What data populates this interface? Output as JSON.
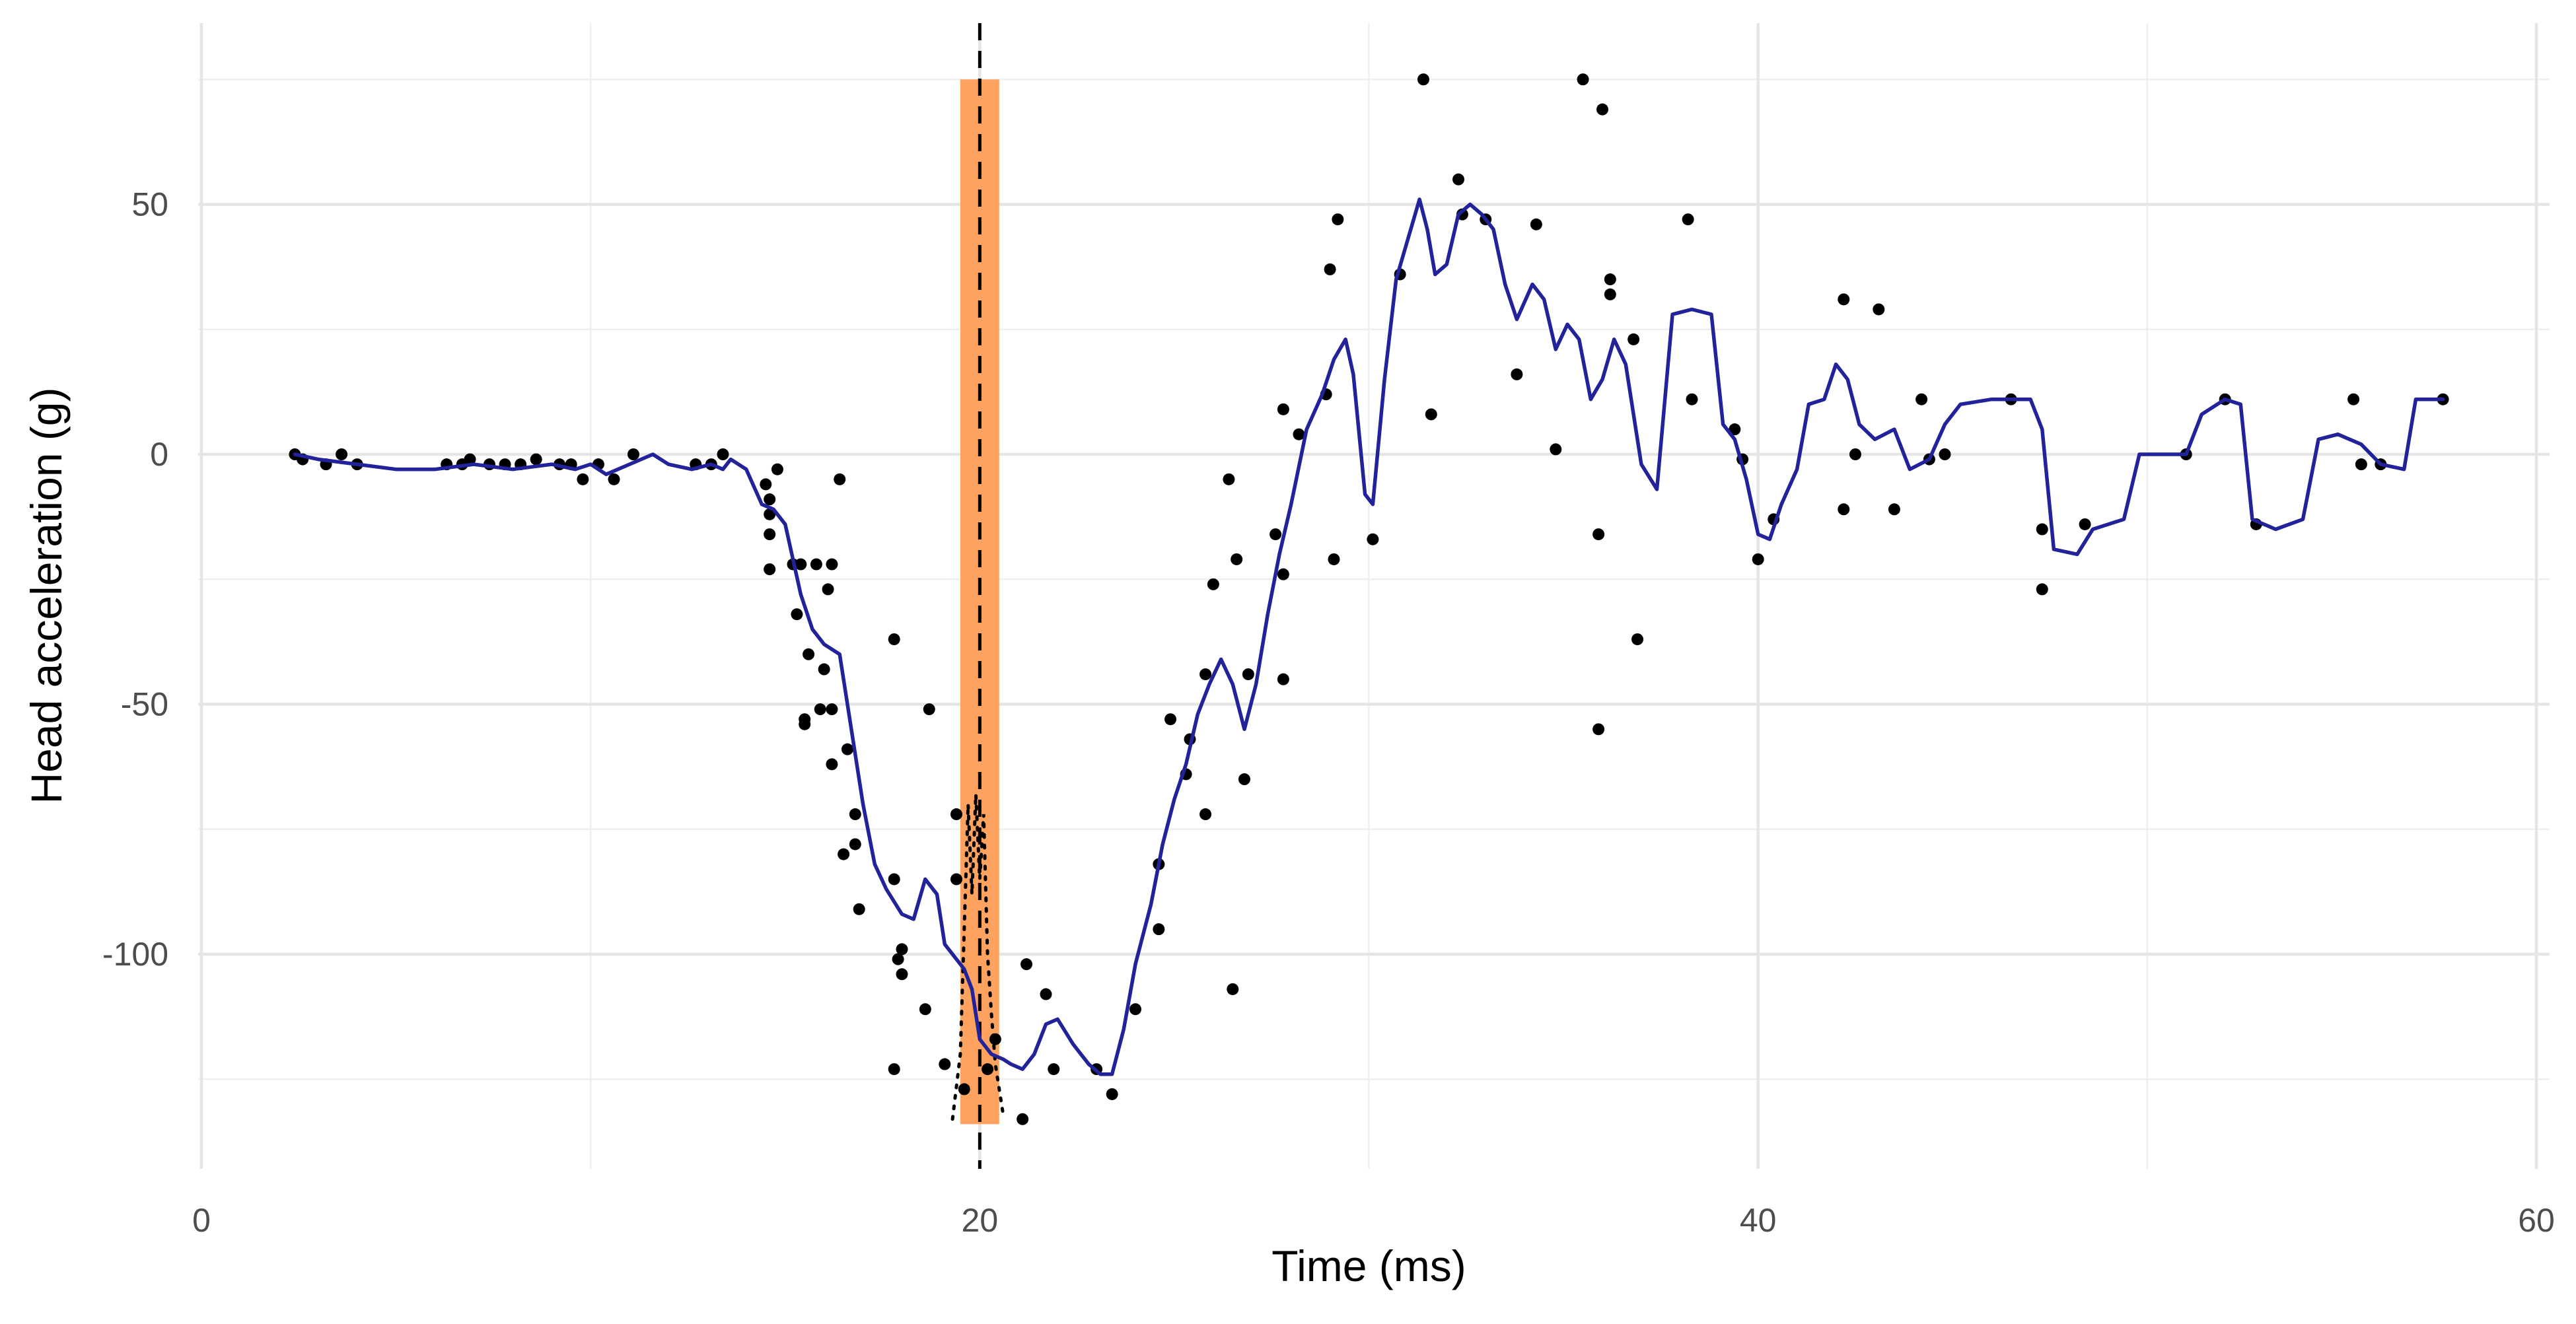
{
  "chart_data": {
    "type": "scatter",
    "title": "",
    "xlabel": "Time (ms)",
    "ylabel": "Head acceleration (g)",
    "xlim": [
      0,
      60
    ],
    "ylim": [
      -140,
      80
    ],
    "x_ticks": [
      0,
      20,
      40,
      60
    ],
    "y_ticks": [
      50,
      0,
      -50,
      -100
    ],
    "grid": true,
    "legend": "none",
    "colors": {
      "points": "#000000",
      "smooth_line": "#22229a",
      "band": "#fda35f",
      "reference_line": "#000000"
    },
    "highlight_band": {
      "x_start": 19.5,
      "x_end": 20.5,
      "y_start": -134,
      "y_end": 75
    },
    "vertical_reference_line": {
      "x": 20,
      "style": "dashed"
    },
    "scatter_points": {
      "name": "",
      "points": [
        [
          2.4,
          0
        ],
        [
          2.6,
          -1
        ],
        [
          3.2,
          -2
        ],
        [
          3.6,
          0
        ],
        [
          4.0,
          -2
        ],
        [
          6.3,
          -2
        ],
        [
          6.7,
          -2
        ],
        [
          6.9,
          -1
        ],
        [
          7.4,
          -2
        ],
        [
          7.8,
          -2
        ],
        [
          8.2,
          -2
        ],
        [
          8.6,
          -1
        ],
        [
          9.2,
          -2
        ],
        [
          9.5,
          -2
        ],
        [
          9.8,
          -5
        ],
        [
          10.2,
          -2
        ],
        [
          10.6,
          -5
        ],
        [
          11.1,
          0
        ],
        [
          12.7,
          -2
        ],
        [
          13.1,
          -2
        ],
        [
          13.4,
          0
        ],
        [
          14.5,
          -6
        ],
        [
          14.6,
          -9
        ],
        [
          14.6,
          -12
        ],
        [
          14.6,
          -16
        ],
        [
          14.6,
          -23
        ],
        [
          14.8,
          -3
        ],
        [
          15.2,
          -22
        ],
        [
          15.3,
          -32
        ],
        [
          15.4,
          -22
        ],
        [
          15.5,
          -53
        ],
        [
          15.5,
          -54
        ],
        [
          15.6,
          -40
        ],
        [
          15.8,
          -22
        ],
        [
          15.9,
          -51
        ],
        [
          16.0,
          -43
        ],
        [
          16.1,
          -27
        ],
        [
          16.2,
          -22
        ],
        [
          16.2,
          -62
        ],
        [
          16.2,
          -51
        ],
        [
          16.4,
          -5
        ],
        [
          16.5,
          -80
        ],
        [
          16.6,
          -59
        ],
        [
          16.8,
          -72
        ],
        [
          16.8,
          -78
        ],
        [
          16.9,
          -91
        ],
        [
          17.8,
          -37
        ],
        [
          17.8,
          -85
        ],
        [
          17.9,
          -101
        ],
        [
          18.0,
          -99
        ],
        [
          17.8,
          -123
        ],
        [
          18.0,
          -104
        ],
        [
          18.6,
          -111
        ],
        [
          18.7,
          -51
        ],
        [
          19.1,
          -122
        ],
        [
          19.4,
          -72
        ],
        [
          19.4,
          -85
        ],
        [
          19.6,
          -127
        ],
        [
          20.2,
          -123
        ],
        [
          20.4,
          -117
        ],
        [
          21.1,
          -133
        ],
        [
          21.2,
          -102
        ],
        [
          21.7,
          -108
        ],
        [
          21.9,
          -123
        ],
        [
          23.0,
          -123
        ],
        [
          23.4,
          -128
        ],
        [
          24.0,
          -111
        ],
        [
          24.6,
          -82
        ],
        [
          24.6,
          -95
        ],
        [
          24.9,
          -53
        ],
        [
          25.3,
          -64
        ],
        [
          25.4,
          -57
        ],
        [
          25.8,
          -44
        ],
        [
          25.8,
          -72
        ],
        [
          26.0,
          -26
        ],
        [
          26.4,
          -5
        ],
        [
          26.5,
          -107
        ],
        [
          26.6,
          -21
        ],
        [
          26.8,
          -65
        ],
        [
          26.9,
          -44
        ],
        [
          27.6,
          -16
        ],
        [
          27.8,
          -24
        ],
        [
          27.8,
          -45
        ],
        [
          27.8,
          9
        ],
        [
          28.2,
          4
        ],
        [
          28.9,
          12
        ],
        [
          29.0,
          37
        ],
        [
          29.1,
          -21
        ],
        [
          29.2,
          47
        ],
        [
          30.1,
          -17
        ],
        [
          30.8,
          36
        ],
        [
          31.4,
          75
        ],
        [
          31.6,
          8
        ],
        [
          32.3,
          55
        ],
        [
          32.4,
          48
        ],
        [
          33.0,
          47
        ],
        [
          33.8,
          16
        ],
        [
          34.3,
          46
        ],
        [
          34.8,
          1
        ],
        [
          35.5,
          75
        ],
        [
          35.9,
          -16
        ],
        [
          35.9,
          -55
        ],
        [
          36.0,
          69
        ],
        [
          36.2,
          32
        ],
        [
          36.2,
          35
        ],
        [
          36.8,
          23
        ],
        [
          36.9,
          -37
        ],
        [
          38.2,
          47
        ],
        [
          38.3,
          11
        ],
        [
          39.4,
          5
        ],
        [
          39.6,
          -1
        ],
        [
          40.0,
          -21
        ],
        [
          40.4,
          -13
        ],
        [
          42.2,
          31
        ],
        [
          42.2,
          -11
        ],
        [
          43.1,
          29
        ],
        [
          42.5,
          0
        ],
        [
          43.5,
          -11
        ],
        [
          44.2,
          11
        ],
        [
          44.4,
          -1
        ],
        [
          44.8,
          0
        ],
        [
          46.5,
          11
        ],
        [
          47.3,
          -27
        ],
        [
          47.3,
          -15
        ],
        [
          48.4,
          -14
        ],
        [
          51.0,
          0
        ],
        [
          52.0,
          11
        ],
        [
          52.8,
          -14
        ],
        [
          55.3,
          11
        ],
        [
          55.5,
          -2
        ],
        [
          56.0,
          -2
        ],
        [
          57.6,
          11
        ]
      ]
    },
    "smooth_line": {
      "name": "",
      "points": [
        [
          2.4,
          0
        ],
        [
          3.0,
          -1
        ],
        [
          4.0,
          -2
        ],
        [
          5.0,
          -3
        ],
        [
          6.0,
          -3
        ],
        [
          7.0,
          -2
        ],
        [
          8.0,
          -3
        ],
        [
          9.0,
          -2
        ],
        [
          9.6,
          -3
        ],
        [
          10.0,
          -2
        ],
        [
          10.4,
          -4
        ],
        [
          11.0,
          -2
        ],
        [
          11.6,
          0
        ],
        [
          12.0,
          -2
        ],
        [
          12.6,
          -3
        ],
        [
          13.1,
          -2
        ],
        [
          13.4,
          -3
        ],
        [
          13.6,
          -1
        ],
        [
          14.0,
          -3
        ],
        [
          14.4,
          -10
        ],
        [
          14.7,
          -11
        ],
        [
          15.0,
          -14
        ],
        [
          15.4,
          -28
        ],
        [
          15.7,
          -35
        ],
        [
          16.0,
          -38
        ],
        [
          16.4,
          -40
        ],
        [
          16.7,
          -55
        ],
        [
          17.0,
          -70
        ],
        [
          17.3,
          -82
        ],
        [
          17.6,
          -87
        ],
        [
          18.0,
          -92
        ],
        [
          18.3,
          -93
        ],
        [
          18.6,
          -85
        ],
        [
          18.9,
          -88
        ],
        [
          19.1,
          -98
        ],
        [
          19.4,
          -101
        ],
        [
          19.6,
          -103
        ],
        [
          19.8,
          -107
        ],
        [
          20.0,
          -117
        ],
        [
          20.3,
          -120
        ],
        [
          20.6,
          -121
        ],
        [
          20.8,
          -122
        ],
        [
          21.1,
          -123
        ],
        [
          21.4,
          -120
        ],
        [
          21.7,
          -114
        ],
        [
          22.0,
          -113
        ],
        [
          22.4,
          -118
        ],
        [
          22.8,
          -122
        ],
        [
          23.1,
          -124
        ],
        [
          23.4,
          -124
        ],
        [
          23.7,
          -115
        ],
        [
          24.0,
          -102
        ],
        [
          24.4,
          -90
        ],
        [
          24.7,
          -78
        ],
        [
          25.0,
          -69
        ],
        [
          25.3,
          -62
        ],
        [
          25.6,
          -52
        ],
        [
          25.9,
          -46
        ],
        [
          26.2,
          -41
        ],
        [
          26.5,
          -46
        ],
        [
          26.8,
          -55
        ],
        [
          27.1,
          -46
        ],
        [
          27.4,
          -32
        ],
        [
          27.7,
          -20
        ],
        [
          28.0,
          -10
        ],
        [
          28.4,
          5
        ],
        [
          28.8,
          12
        ],
        [
          29.1,
          19
        ],
        [
          29.4,
          23
        ],
        [
          29.6,
          16
        ],
        [
          29.9,
          -8
        ],
        [
          30.1,
          -10
        ],
        [
          30.4,
          15
        ],
        [
          30.7,
          35
        ],
        [
          31.0,
          43
        ],
        [
          31.3,
          51
        ],
        [
          31.5,
          45
        ],
        [
          31.7,
          36
        ],
        [
          32.0,
          38
        ],
        [
          32.3,
          48
        ],
        [
          32.6,
          50
        ],
        [
          32.9,
          48
        ],
        [
          33.2,
          45
        ],
        [
          33.5,
          34
        ],
        [
          33.8,
          27
        ],
        [
          34.2,
          34
        ],
        [
          34.5,
          31
        ],
        [
          34.8,
          21
        ],
        [
          35.1,
          26
        ],
        [
          35.4,
          23
        ],
        [
          35.7,
          11
        ],
        [
          36.0,
          15
        ],
        [
          36.3,
          23
        ],
        [
          36.6,
          18
        ],
        [
          37.0,
          -2
        ],
        [
          37.4,
          -7
        ],
        [
          37.8,
          28
        ],
        [
          38.3,
          29
        ],
        [
          38.8,
          28
        ],
        [
          39.1,
          6
        ],
        [
          39.4,
          3
        ],
        [
          39.7,
          -5
        ],
        [
          40.0,
          -16
        ],
        [
          40.3,
          -17
        ],
        [
          40.6,
          -10
        ],
        [
          41.0,
          -3
        ],
        [
          41.3,
          10
        ],
        [
          41.7,
          11
        ],
        [
          42.0,
          18
        ],
        [
          42.3,
          15
        ],
        [
          42.6,
          6
        ],
        [
          43.0,
          3
        ],
        [
          43.5,
          5
        ],
        [
          43.9,
          -3
        ],
        [
          44.4,
          -1
        ],
        [
          44.8,
          6
        ],
        [
          45.2,
          10
        ],
        [
          46.0,
          11
        ],
        [
          47.0,
          11
        ],
        [
          47.3,
          5
        ],
        [
          47.6,
          -19
        ],
        [
          48.2,
          -20
        ],
        [
          48.6,
          -15
        ],
        [
          49.4,
          -13
        ],
        [
          49.8,
          0
        ],
        [
          50.4,
          0
        ],
        [
          51.0,
          0
        ],
        [
          51.4,
          8
        ],
        [
          52.0,
          11
        ],
        [
          52.4,
          10
        ],
        [
          52.7,
          -13
        ],
        [
          53.3,
          -15
        ],
        [
          54.0,
          -13
        ],
        [
          54.4,
          3
        ],
        [
          54.9,
          4
        ],
        [
          55.5,
          2
        ],
        [
          56.0,
          -2
        ],
        [
          56.6,
          -3
        ],
        [
          56.9,
          11
        ],
        [
          57.6,
          11
        ]
      ]
    },
    "dotted_line": {
      "name": "",
      "points": [
        [
          19.3,
          -133
        ],
        [
          19.5,
          -120
        ],
        [
          19.6,
          -95
        ],
        [
          19.7,
          -70
        ],
        [
          19.8,
          -88
        ],
        [
          19.9,
          -68
        ],
        [
          20.0,
          -85
        ],
        [
          20.1,
          -72
        ],
        [
          20.2,
          -100
        ],
        [
          20.3,
          -112
        ],
        [
          20.4,
          -122
        ],
        [
          20.6,
          -132
        ]
      ]
    }
  }
}
